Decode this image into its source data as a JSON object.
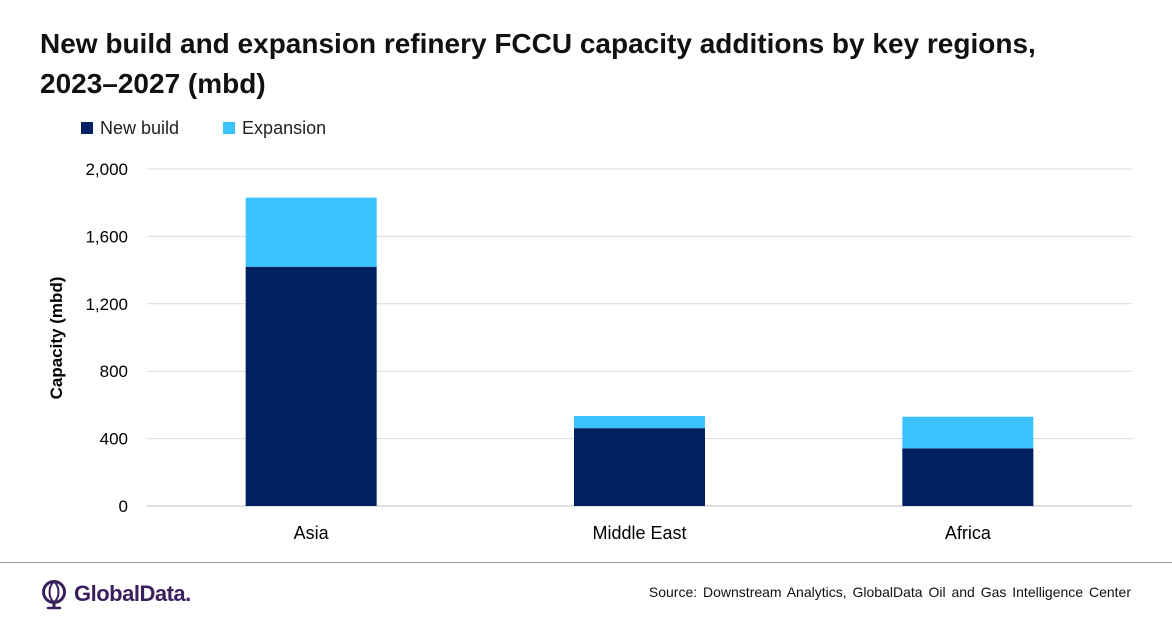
{
  "title_line1": "New build and expansion refinery FCCU capacity additions by key regions,",
  "title_line2": "2023–2027 (mbd)",
  "colors": {
    "new_build": "#002060",
    "expansion": "#3bc3ff",
    "grid": "#d9d9d9",
    "brand": "#3b1f5c"
  },
  "legend": [
    {
      "label": "New build",
      "color": "#002060"
    },
    {
      "label": "Expansion",
      "color": "#3bc3ff"
    }
  ],
  "chart_data": {
    "type": "bar",
    "stacked": true,
    "categories": [
      "Asia",
      "Middle East",
      "Africa"
    ],
    "series": [
      {
        "name": "New build",
        "values": [
          1420,
          462,
          342
        ]
      },
      {
        "name": "Expansion",
        "values": [
          410,
          72,
          188
        ]
      }
    ],
    "ylabel": "Capacity (mbd)",
    "xlabel": "",
    "ylim": [
      0,
      2000
    ],
    "yticks": [
      0,
      400,
      800,
      1200,
      1600,
      2000
    ],
    "ytick_labels": [
      "0",
      "400",
      "800",
      "1,200",
      "1,600",
      "2,000"
    ],
    "grid": true,
    "legend_position": "top-left"
  },
  "footer": {
    "logo_text": "GlobalData.",
    "logo_icon": "globaldata-logo-icon",
    "source": "Source: Downstream Analytics, GlobalData Oil and Gas Intelligence Center"
  }
}
